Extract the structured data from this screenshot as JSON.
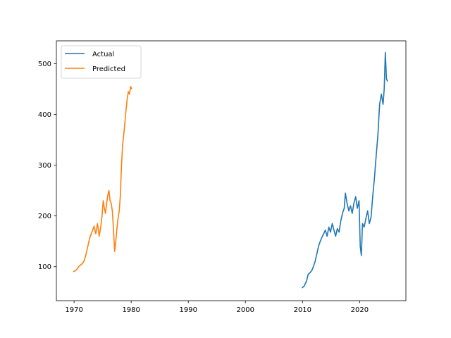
{
  "chart_data": {
    "type": "line",
    "title": "",
    "xlabel": "",
    "ylabel": "",
    "xlim": [
      1966.9,
      2028.1
    ],
    "ylim": [
      33,
      545
    ],
    "xticks": [
      1970,
      1980,
      1990,
      2000,
      2010,
      2020
    ],
    "yticks": [
      100,
      200,
      300,
      400,
      500
    ],
    "grid": false,
    "legend_position": "top-left",
    "series": [
      {
        "name": "Actual",
        "color": "#1f77b4",
        "x": [
          2009.9,
          2010.3,
          2010.7,
          2011.0,
          2011.3,
          2011.6,
          2011.9,
          2012.2,
          2012.5,
          2012.8,
          2013.1,
          2013.4,
          2013.7,
          2014.0,
          2014.3,
          2014.6,
          2014.9,
          2015.2,
          2015.5,
          2015.8,
          2016.1,
          2016.4,
          2016.7,
          2017.0,
          2017.3,
          2017.5,
          2017.8,
          2018.1,
          2018.4,
          2018.7,
          2019.0,
          2019.3,
          2019.6,
          2019.9,
          2020.1,
          2020.3,
          2020.5,
          2020.8,
          2021.1,
          2021.4,
          2021.7,
          2022.0,
          2022.3,
          2022.6,
          2022.9,
          2023.2,
          2023.5,
          2023.8,
          2024.1,
          2024.3,
          2024.5,
          2024.7,
          2024.9
        ],
        "y": [
          58,
          62,
          72,
          85,
          88,
          92,
          100,
          110,
          125,
          140,
          150,
          158,
          165,
          172,
          160,
          178,
          168,
          185,
          172,
          160,
          175,
          168,
          190,
          205,
          215,
          245,
          225,
          210,
          220,
          205,
          225,
          238,
          215,
          230,
          140,
          122,
          185,
          178,
          195,
          210,
          185,
          198,
          240,
          275,
          320,
          360,
          420,
          440,
          420,
          450,
          522,
          470,
          465
        ]
      },
      {
        "name": "Predicted",
        "color": "#ff7f0e",
        "x": [
          1969.9,
          1970.2,
          1970.5,
          1970.8,
          1971.1,
          1971.4,
          1971.7,
          1972.0,
          1972.3,
          1972.6,
          1972.9,
          1973.2,
          1973.5,
          1973.8,
          1974.1,
          1974.4,
          1974.7,
          1974.9,
          1975.1,
          1975.3,
          1975.5,
          1975.7,
          1975.9,
          1976.1,
          1976.3,
          1976.5,
          1976.7,
          1976.9,
          1977.1,
          1977.3,
          1977.5,
          1977.7,
          1977.9,
          1978.1,
          1978.3,
          1978.5,
          1978.7,
          1978.9,
          1979.1,
          1979.3,
          1979.5,
          1979.7,
          1979.9,
          1980.1
        ],
        "y": [
          90,
          92,
          95,
          100,
          103,
          106,
          110,
          120,
          135,
          150,
          162,
          170,
          180,
          165,
          185,
          160,
          180,
          200,
          230,
          215,
          205,
          225,
          240,
          250,
          230,
          225,
          210,
          175,
          130,
          150,
          175,
          195,
          210,
          240,
          300,
          340,
          360,
          385,
          410,
          430,
          445,
          440,
          455,
          450
        ]
      }
    ]
  }
}
